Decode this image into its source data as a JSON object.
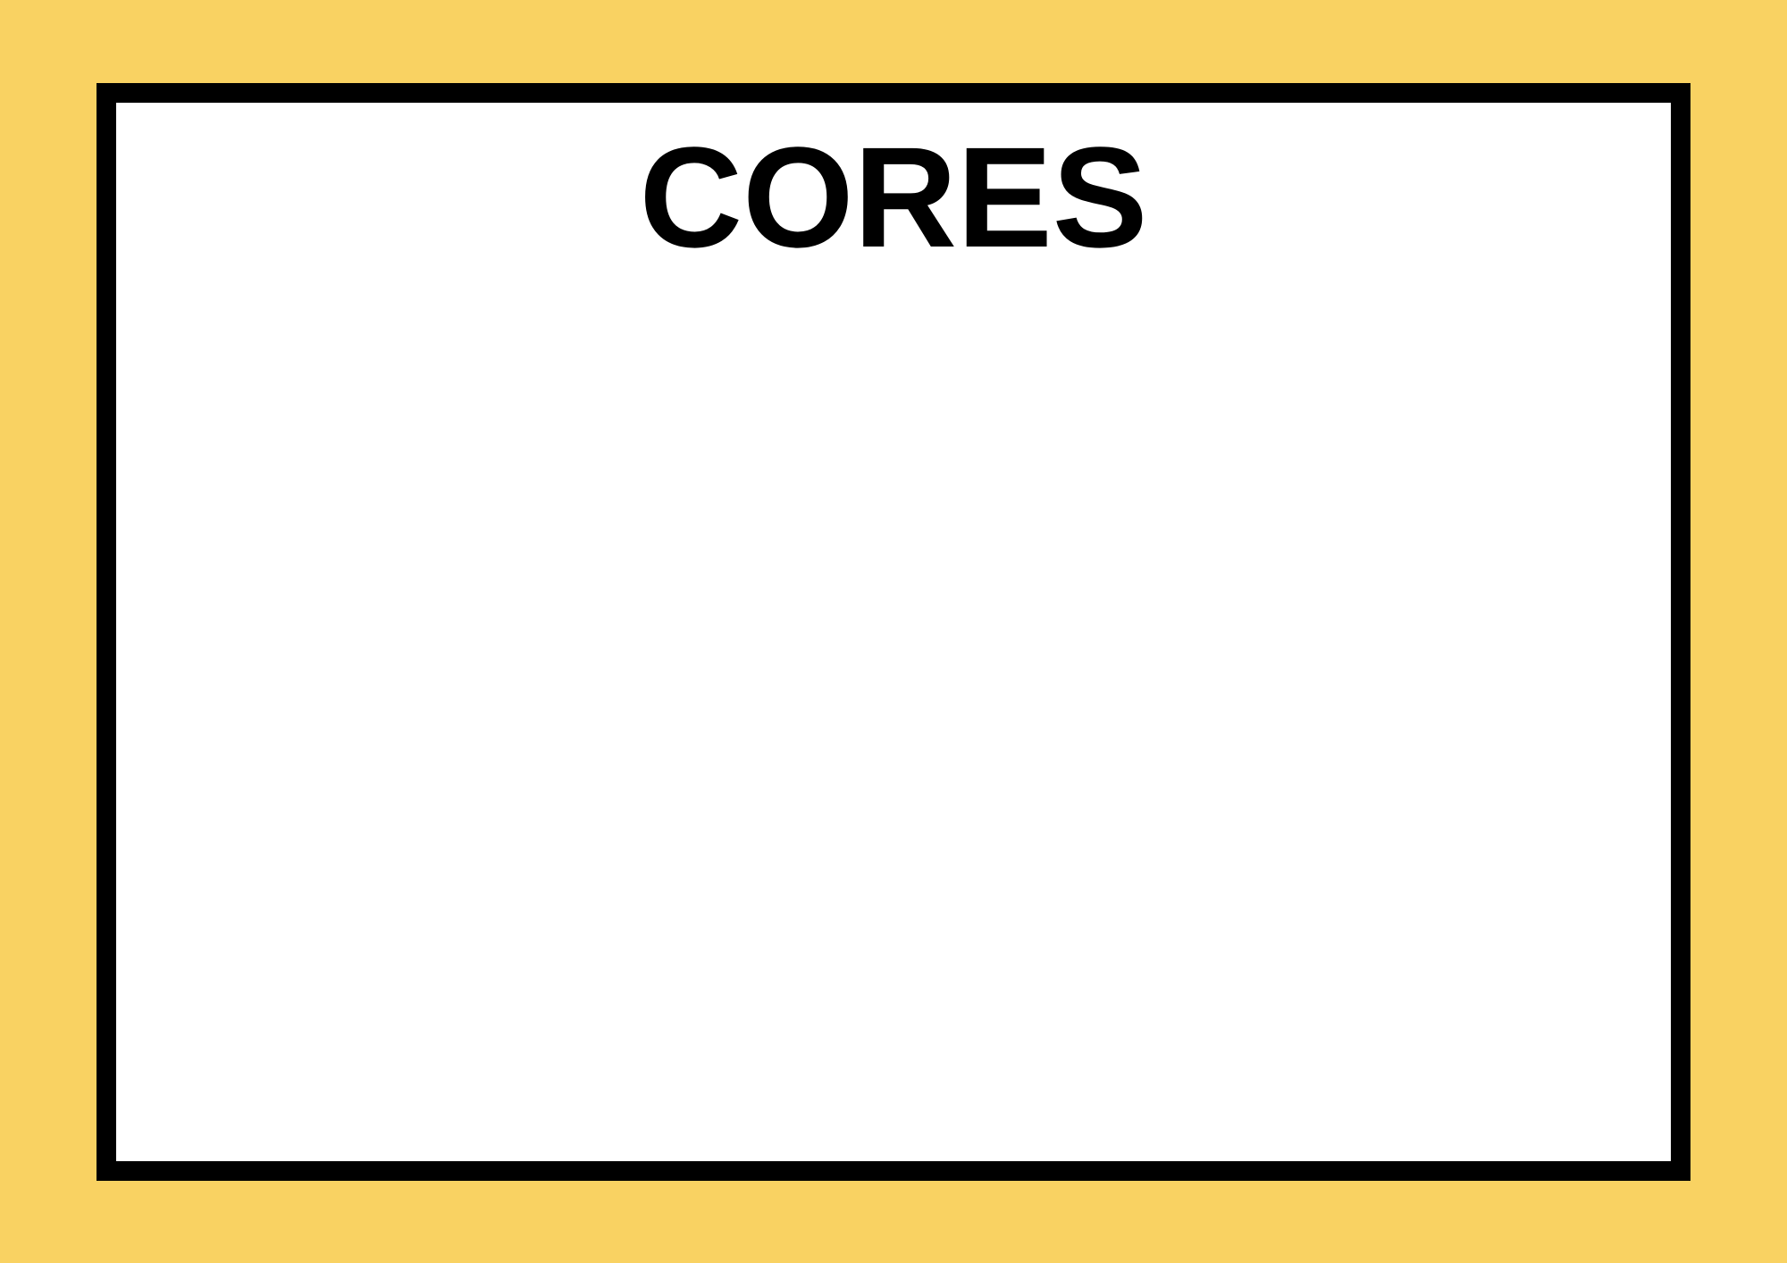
{
  "slide": {
    "title": "CORES"
  },
  "colors": {
    "background": "#F9D262",
    "card_background": "#FFFFFF",
    "card_border": "#000000",
    "title_text": "#000000"
  }
}
